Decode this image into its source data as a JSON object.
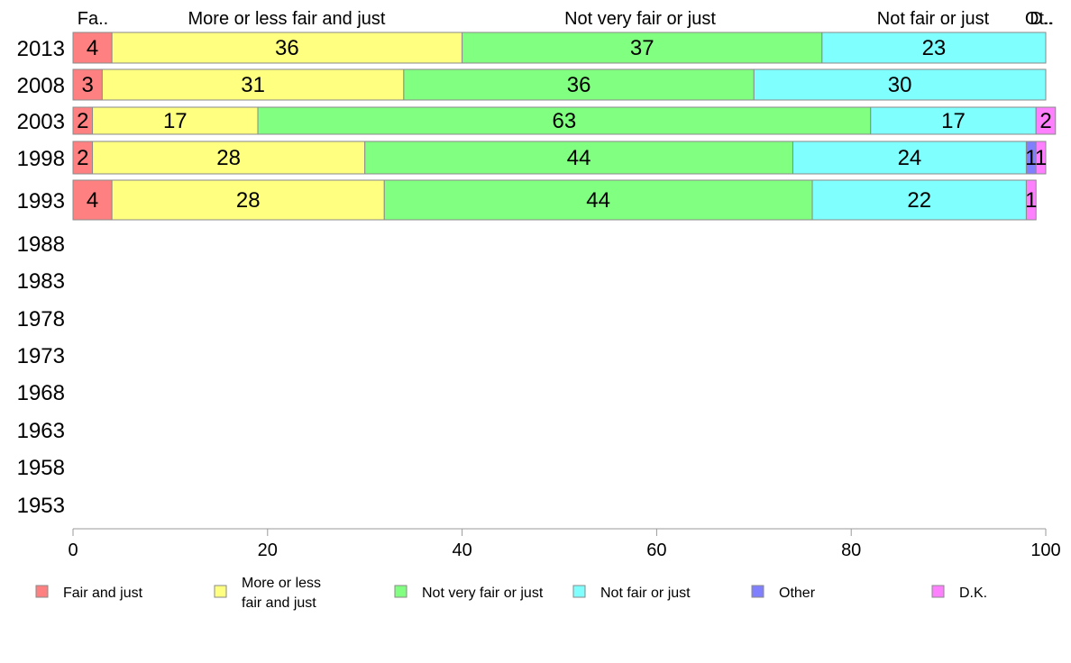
{
  "chart_data": {
    "type": "bar",
    "orientation": "horizontal",
    "stacked": true,
    "categories": [
      "2013",
      "2008",
      "2003",
      "1998",
      "1993",
      "1988",
      "1983",
      "1978",
      "1973",
      "1968",
      "1963",
      "1958",
      "1953"
    ],
    "series": [
      {
        "name": "Fair and just",
        "values": [
          4,
          3,
          2,
          2,
          4,
          null,
          null,
          null,
          null,
          null,
          null,
          null,
          null
        ],
        "color": "#ff8080"
      },
      {
        "name": "More or less fair and just",
        "values": [
          36,
          31,
          17,
          28,
          28,
          null,
          null,
          null,
          null,
          null,
          null,
          null,
          null
        ],
        "color": "#ffff80"
      },
      {
        "name": "Not very fair or just",
        "values": [
          37,
          36,
          63,
          44,
          44,
          null,
          null,
          null,
          null,
          null,
          null,
          null,
          null
        ],
        "color": "#80ff80"
      },
      {
        "name": "Not fair or just",
        "values": [
          23,
          30,
          17,
          24,
          22,
          null,
          null,
          null,
          null,
          null,
          null,
          null,
          null
        ],
        "color": "#80ffff"
      },
      {
        "name": "Other",
        "values": [
          0,
          0,
          0,
          1,
          0,
          null,
          null,
          null,
          null,
          null,
          null,
          null,
          null
        ],
        "color": "#8080ff"
      },
      {
        "name": "D.K.",
        "values": [
          0,
          0,
          2,
          1,
          1,
          null,
          null,
          null,
          null,
          null,
          null,
          null,
          null
        ],
        "color": "#ff80ff"
      }
    ],
    "top_labels": [
      "Fa..",
      "More or less fair and just",
      "Not very fair or just",
      "Not fair or just",
      "Ot..",
      "D.."
    ],
    "legend_labels": [
      "Fair and just",
      "More or less|fair and just",
      "Not very fair or just",
      "Not fair or just",
      "Other",
      "D.K."
    ],
    "xlim": [
      0,
      100
    ],
    "xticks": [
      0,
      20,
      40,
      60,
      80,
      100
    ],
    "grid": false,
    "legend_position": "bottom"
  }
}
